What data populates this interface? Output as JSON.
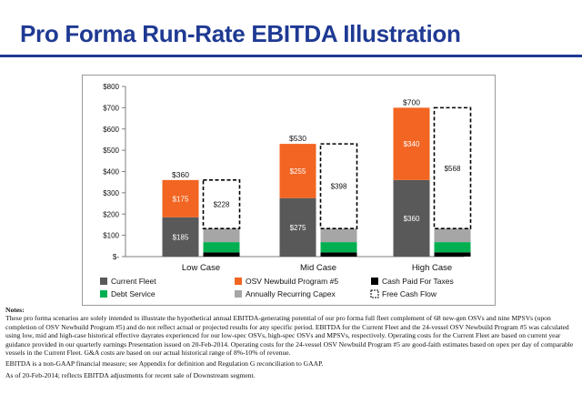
{
  "page": {
    "title": "Pro Forma Run-Rate EBITDA Illustration"
  },
  "chart_data": {
    "type": "bar",
    "stacked": true,
    "categories": [
      "Low Case",
      "Mid Case",
      "High Case"
    ],
    "ylim": [
      0,
      800
    ],
    "yticks": [
      "$-",
      "$100",
      "$200",
      "$300",
      "$400",
      "$500",
      "$600",
      "$700",
      "$800"
    ],
    "ytick_values": [
      0,
      100,
      200,
      300,
      400,
      500,
      600,
      700,
      800
    ],
    "ebitda_bar": {
      "series": [
        {
          "name": "Current Fleet",
          "values": [
            185,
            275,
            360
          ],
          "labels": [
            "$185",
            "$275",
            "$360"
          ],
          "color": "#595959"
        },
        {
          "name": "OSV Newbuild Program #5",
          "values": [
            175,
            255,
            340
          ],
          "labels": [
            "$175",
            "$255",
            "$340"
          ],
          "color": "#f26522"
        }
      ],
      "totals": [
        360,
        530,
        700
      ],
      "total_labels": [
        "$360",
        "$530",
        "$700"
      ]
    },
    "cash_bar": {
      "series": [
        {
          "name": "Cash Paid For Taxes",
          "values": [
            20,
            20,
            20
          ],
          "color": "#000000"
        },
        {
          "name": "Debt Service",
          "values": [
            48,
            48,
            48
          ],
          "color": "#00b050"
        },
        {
          "name": "Annually Recurring Capex",
          "values": [
            64,
            64,
            64
          ],
          "color": "#a6a6a6"
        },
        {
          "name": "Free Cash Flow",
          "values": [
            228,
            398,
            568
          ],
          "labels": [
            "$228",
            "$398",
            "$568"
          ],
          "color": "#ffffff",
          "dashed": true
        }
      ]
    },
    "legend": {
      "placement": "bottom",
      "items": [
        {
          "name": "Current Fleet",
          "color": "#595959"
        },
        {
          "name": "OSV Newbuild Program #5",
          "color": "#f26522"
        },
        {
          "name": "Cash Paid For Taxes",
          "color": "#000000"
        },
        {
          "name": "Debt Service",
          "color": "#00b050"
        },
        {
          "name": "Annually Recurring Capex",
          "color": "#a6a6a6"
        },
        {
          "name": "Free Cash Flow",
          "color": "#ffffff",
          "dashed": true
        }
      ]
    },
    "grid": false
  },
  "notes": {
    "heading": "Notes:",
    "paragraph_1": "These pro forma scenarios are solely intended to illustrate the hypothetical annual EBITDA-generating potential of our pro forma full fleet complement of 68 new-gen OSVs and nine MPSVs (upon completion of OSV Newbuild Program #5) and do not reflect actual or projected results for any specific period. EBITDA for the Current Fleet and the 24-vessel OSV Newbuild Program #5 was calculated using low, mid and high-case historical effective dayrates experienced for our low-spec OSVs, high-spec OSVs and MPSVs, respectively. Operating costs for the Current Fleet are based on current year guidance provided in our quarterly earnings Presentation issued on 20-Feb-2014. Operating costs for the 24-vessel OSV Newbuild Program #5 are good-faith estimates based on opex per day of comparable vessels in the Current Fleet. G&A costs are based on our actual historical range of 8%-10% of revenue.",
    "paragraph_2": "EBITDA is a non-GAAP financial measure; see Appendix for definition and Regulation G reconciliation to GAAP.",
    "paragraph_3": "As of 20-Feb-2014; reflects EBITDA adjustments for recent sale of Downstream segment."
  }
}
